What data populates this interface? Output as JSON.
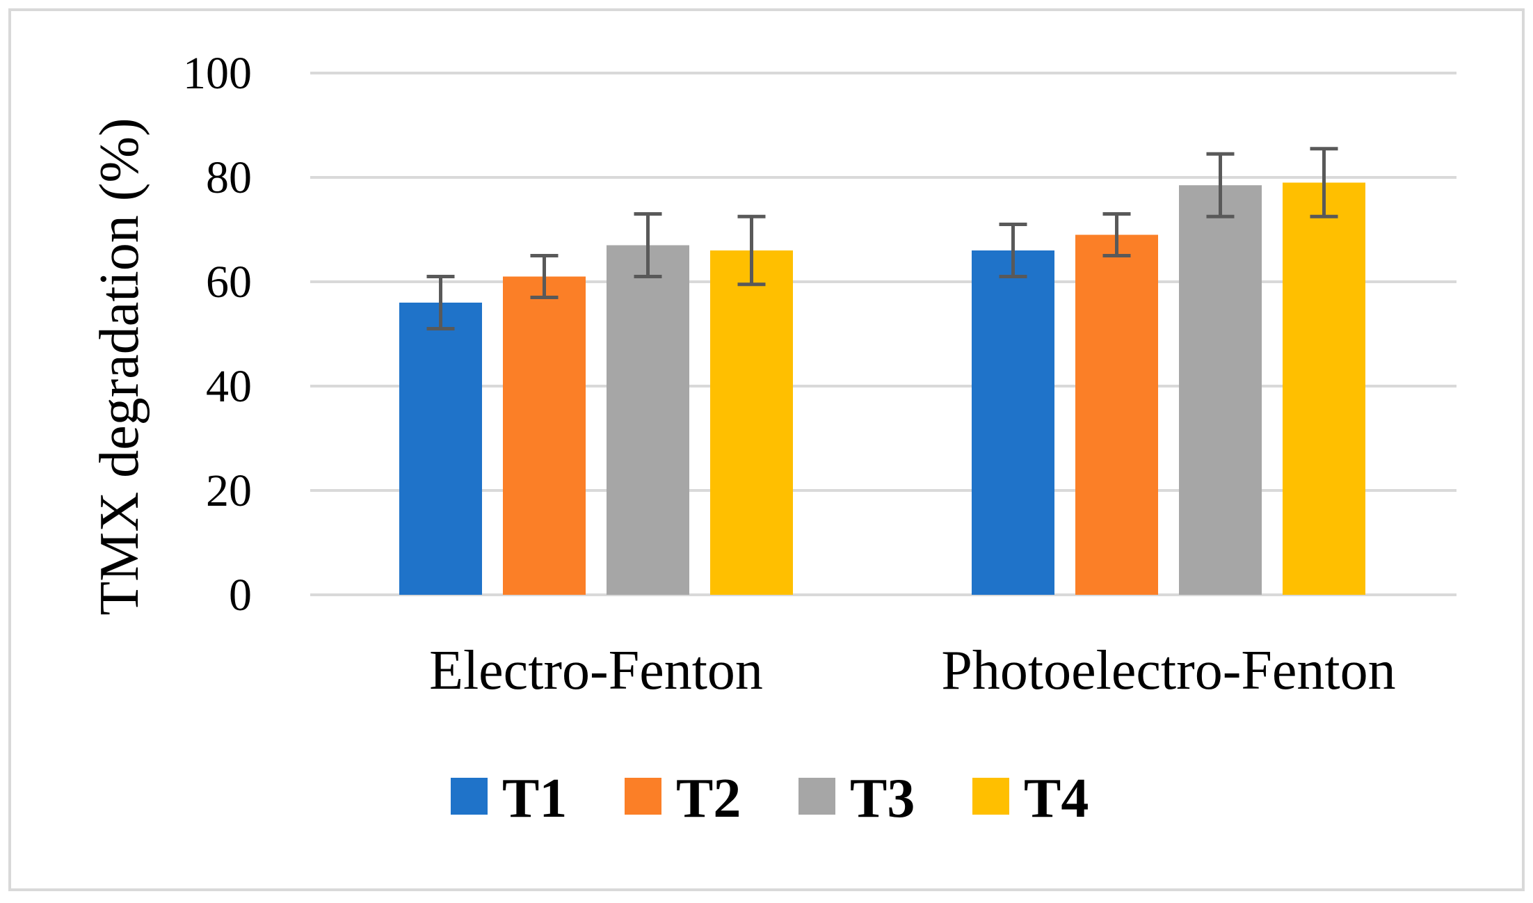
{
  "chart_data": {
    "type": "bar",
    "title": "",
    "xlabel": "",
    "ylabel": "TMX degradation  (%)",
    "ylim": [
      0,
      100
    ],
    "yticks": [
      0,
      20,
      40,
      60,
      80,
      100
    ],
    "grid": true,
    "legend_position": "bottom",
    "categories": [
      "Electro-Fenton",
      "Photoelectro-Fenton"
    ],
    "series": [
      {
        "name": "T1",
        "color": "#1f73c9",
        "values": [
          56,
          66
        ],
        "error": [
          5,
          5
        ]
      },
      {
        "name": "T2",
        "color": "#fb7f27",
        "values": [
          61,
          69
        ],
        "error": [
          4,
          4
        ]
      },
      {
        "name": "T3",
        "color": "#a6a6a6",
        "values": [
          67,
          78.5
        ],
        "error": [
          6,
          6
        ]
      },
      {
        "name": "T4",
        "color": "#ffbf00",
        "values": [
          66,
          79
        ],
        "error": [
          6.5,
          6.5
        ]
      }
    ],
    "colors": {
      "grid": "#d9d9d9",
      "error_bar": "#595959",
      "frame": "#d9d9d9"
    }
  }
}
